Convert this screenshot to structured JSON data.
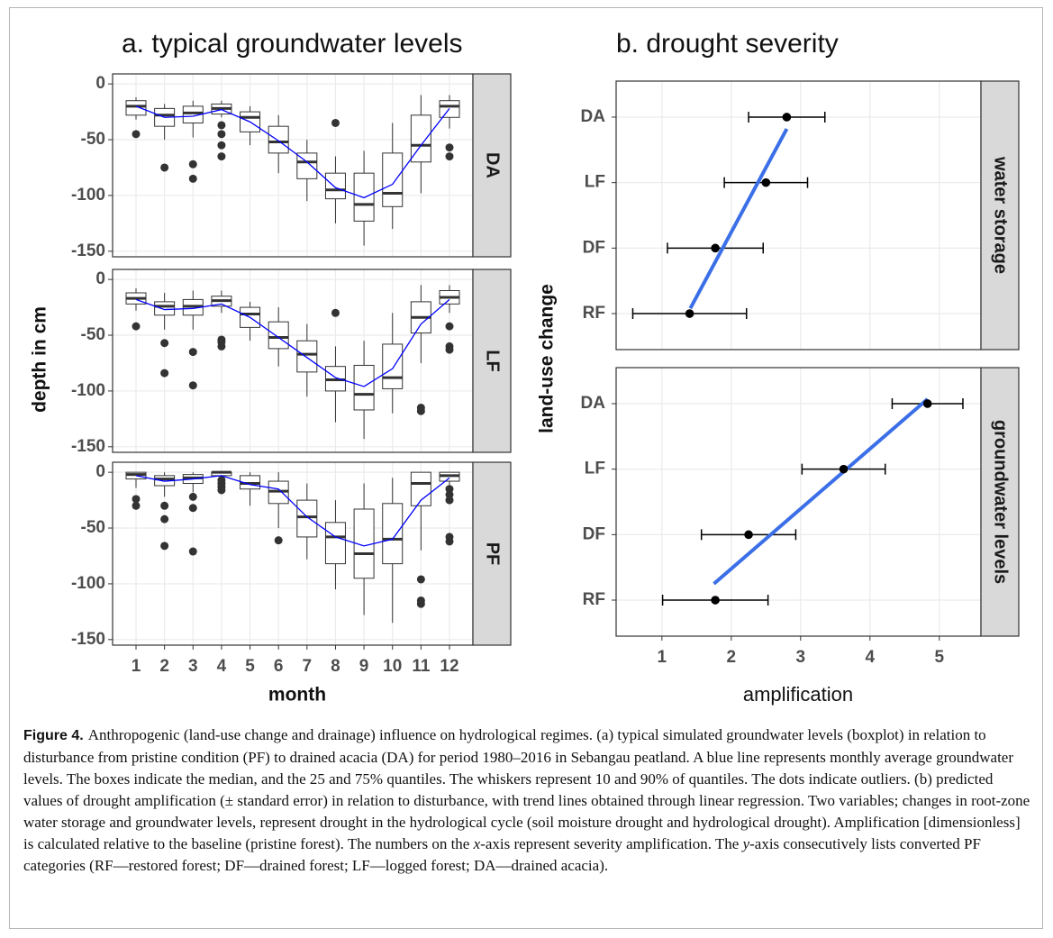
{
  "chart_data": [
    {
      "type": "boxplot",
      "title": "a. typical groundwater levels",
      "ylabel": "depth in cm",
      "xlabel": "month",
      "categories": [
        "1",
        "2",
        "3",
        "4",
        "5",
        "6",
        "7",
        "8",
        "9",
        "10",
        "11",
        "12"
      ],
      "ylim": [
        -155,
        9
      ],
      "yticks": [
        0,
        -50,
        -100,
        -150
      ],
      "grid": true,
      "box_color": "#333333",
      "mean_color": "#0000ff",
      "outlier_color": "#333333",
      "facets": [
        {
          "name": "DA",
          "whisker_high": [
            -12,
            -18,
            -15,
            -15,
            -20,
            -28,
            -50,
            -65,
            -60,
            -35,
            -10,
            -10
          ],
          "upper": [
            -15,
            -22,
            -20,
            -18,
            -25,
            -38,
            -62,
            -80,
            -80,
            -62,
            -28,
            -15
          ],
          "median": [
            -20,
            -28,
            -26,
            -22,
            -30,
            -52,
            -70,
            -95,
            -108,
            -98,
            -55,
            -20
          ],
          "lower": [
            -28,
            -38,
            -35,
            -27,
            -43,
            -62,
            -85,
            -103,
            -123,
            -110,
            -70,
            -30
          ],
          "whisker_low": [
            -32,
            -50,
            -48,
            -30,
            -55,
            -80,
            -105,
            -125,
            -145,
            -130,
            -98,
            -40
          ],
          "outliers": [
            [
              -45
            ],
            [
              -75
            ],
            [
              -72,
              -85
            ],
            [
              -37,
              -45,
              -55,
              -65
            ],
            [],
            [],
            [],
            [
              -35
            ],
            [],
            [],
            [],
            [
              -57,
              -65
            ]
          ],
          "mean": [
            -20,
            -30,
            -29,
            -23,
            -34,
            -51,
            -70,
            -93,
            -102,
            -90,
            -55,
            -22
          ]
        },
        {
          "name": "LF",
          "whisker_high": [
            -8,
            -12,
            -10,
            -10,
            -20,
            -25,
            -40,
            -60,
            -55,
            -30,
            -5,
            -5
          ],
          "upper": [
            -12,
            -20,
            -18,
            -15,
            -25,
            -38,
            -55,
            -78,
            -77,
            -58,
            -20,
            -10
          ],
          "median": [
            -17,
            -24,
            -24,
            -19,
            -31,
            -52,
            -67,
            -90,
            -103,
            -88,
            -34,
            -16
          ],
          "lower": [
            -22,
            -32,
            -32,
            -24,
            -43,
            -62,
            -83,
            -100,
            -117,
            -98,
            -48,
            -22
          ],
          "whisker_low": [
            -28,
            -45,
            -45,
            -30,
            -55,
            -78,
            -105,
            -128,
            -143,
            -120,
            -75,
            -30
          ],
          "outliers": [
            [
              -42
            ],
            [
              -57,
              -84
            ],
            [
              -65,
              -95
            ],
            [
              -54,
              -56,
              -60
            ],
            [],
            [],
            [],
            [
              -30
            ],
            [],
            [],
            [
              -115,
              -118
            ],
            [
              -42,
              -60,
              -63
            ]
          ],
          "mean": [
            -18,
            -27,
            -26,
            -22,
            -34,
            -52,
            -70,
            -88,
            -96,
            -80,
            -40,
            -18
          ]
        },
        {
          "name": "PF",
          "whisker_high": [
            0,
            0,
            0,
            0,
            0,
            0,
            -10,
            -25,
            -10,
            -5,
            0,
            0
          ],
          "upper": [
            0,
            -3,
            -2,
            0,
            -3,
            -8,
            -25,
            -45,
            -33,
            -28,
            0,
            0
          ],
          "median": [
            -2,
            -6,
            -5,
            0,
            -10,
            -17,
            -40,
            -58,
            -73,
            -60,
            -10,
            -3
          ],
          "lower": [
            -6,
            -12,
            -10,
            -3,
            -15,
            -28,
            -58,
            -82,
            -95,
            -82,
            -30,
            -8
          ],
          "whisker_low": [
            -14,
            -22,
            -18,
            -5,
            -30,
            -50,
            -78,
            -105,
            -128,
            -135,
            -70,
            -12
          ],
          "outliers": [
            [
              -24,
              -30
            ],
            [
              -30,
              -42,
              -66
            ],
            [
              -22,
              -32,
              -71
            ],
            [
              -7,
              -10,
              -13,
              -16
            ],
            [],
            [
              -61
            ],
            [],
            [],
            [],
            [],
            [
              -96,
              -115,
              -118
            ],
            [
              -15,
              -20,
              -25,
              -58,
              -62
            ]
          ],
          "mean": [
            -3,
            -8,
            -6,
            -3,
            -11,
            -15,
            -40,
            -58,
            -66,
            -60,
            -25,
            -5
          ]
        }
      ]
    },
    {
      "type": "errorbar",
      "title": "b. drought severity",
      "xlabel": "amplification",
      "ylabel": "land-use change",
      "categories": [
        "RF",
        "DF",
        "LF",
        "DA"
      ],
      "xlim": [
        0.34,
        5.6
      ],
      "xticks": [
        1,
        2,
        3,
        4,
        5
      ],
      "grid": true,
      "point_color": "#000000",
      "trend_color": "#3b6fe8",
      "facets": [
        {
          "name": "water storage",
          "values": [
            1.4,
            1.77,
            2.5,
            2.8
          ],
          "errors": [
            0.82,
            0.69,
            0.6,
            0.55
          ],
          "trend": {
            "amplification": [
              1.41,
              2.8
            ],
            "position": [
              1.08,
              3.82
            ]
          }
        },
        {
          "name": "groundwater levels",
          "values": [
            1.77,
            2.25,
            3.62,
            4.83
          ],
          "errors": [
            0.76,
            0.68,
            0.6,
            0.51
          ],
          "trend": {
            "amplification": [
              1.75,
              4.83
            ],
            "position": [
              1.25,
              4.07
            ]
          }
        }
      ]
    }
  ],
  "caption": {
    "label": "Figure 4.",
    "text": [
      "Anthropogenic (land-use change and drainage) influence on hydrological regimes. (a) typical simulated groundwater levels (boxplot) in relation to disturbance from pristine condition (PF) to drained acacia (DA) for period 1980–2016 in Sebangau peatland. A blue line represents monthly average groundwater levels. The boxes indicate the median, and the 25 and 75% quantiles. The whiskers represent 10 and 90% of quantiles. The dots indicate outliers. (b) predicted values of drought amplification (± standard error) in relation to disturbance, with trend lines obtained through linear regression. Two variables; changes in root-zone water storage and groundwater levels, represent drought in the hydrological cycle (soil moisture drought and hydrological drought). Amplification [dimensionless] is calculated relative to the baseline (pristine forest). The numbers on the ",
      "x",
      "-axis represent severity amplification. The ",
      "y",
      "-axis consecutively lists converted PF categories (RF—restored forest; DF—drained forest; LF—logged forest; DA—drained acacia)."
    ]
  }
}
